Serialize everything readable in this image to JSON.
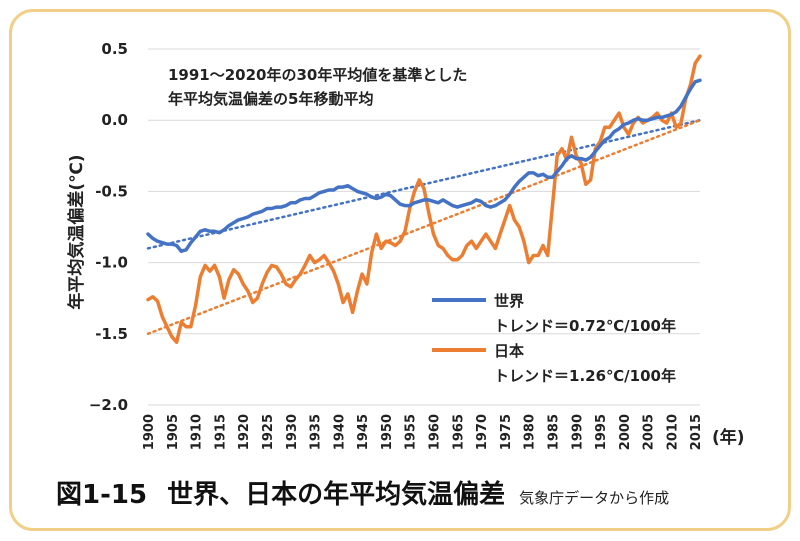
{
  "caption": {
    "number": "図1-15",
    "title": "世界、日本の年平均気温偏差",
    "source": "気象庁データから作成"
  },
  "chart_data": {
    "type": "line",
    "ylabel": "年平均気温偏差(℃)",
    "xlabel": "(年)",
    "annotation": [
      "1991～2020年の30年平均値を基準とした",
      "年平均気温偏差の5年移動平均"
    ],
    "ylim": [
      -2.0,
      0.5
    ],
    "xlim": [
      1900,
      2016
    ],
    "y_ticks": [
      0.5,
      0.0,
      -0.5,
      -1.0,
      -1.5,
      -2.0
    ],
    "y_tick_labels": [
      "0.5",
      "0.0",
      "-0.5",
      "-1.0",
      "-1.5",
      "−2.0"
    ],
    "x_ticks": [
      1900,
      1905,
      1910,
      1915,
      1920,
      1925,
      1930,
      1935,
      1940,
      1945,
      1950,
      1955,
      1960,
      1965,
      1970,
      1975,
      1980,
      1985,
      1990,
      1995,
      2000,
      2005,
      2010,
      2015
    ],
    "grid": "horizontal",
    "legend_position": "lower-right",
    "colors": {
      "world": "#4472c4",
      "japan": "#ed7d31",
      "grid": "#d9d9d9",
      "frame": "#f2cf86"
    },
    "series": [
      {
        "name": "世界",
        "legend_trend": "トレンド＝0.72℃/100年",
        "x": [
          1900,
          1901,
          1902,
          1903,
          1904,
          1905,
          1906,
          1907,
          1908,
          1909,
          1910,
          1911,
          1912,
          1913,
          1914,
          1915,
          1916,
          1917,
          1918,
          1919,
          1920,
          1921,
          1922,
          1923,
          1924,
          1925,
          1926,
          1927,
          1928,
          1929,
          1930,
          1931,
          1932,
          1933,
          1934,
          1935,
          1936,
          1937,
          1938,
          1939,
          1940,
          1941,
          1942,
          1943,
          1944,
          1945,
          1946,
          1947,
          1948,
          1949,
          1950,
          1951,
          1952,
          1953,
          1954,
          1955,
          1956,
          1957,
          1958,
          1959,
          1960,
          1961,
          1962,
          1963,
          1964,
          1965,
          1966,
          1967,
          1968,
          1969,
          1970,
          1971,
          1972,
          1973,
          1974,
          1975,
          1976,
          1977,
          1978,
          1979,
          1980,
          1981,
          1982,
          1983,
          1984,
          1985,
          1986,
          1987,
          1988,
          1989,
          1990,
          1991,
          1992,
          1993,
          1994,
          1995,
          1996,
          1997,
          1998,
          1999,
          2000,
          2001,
          2002,
          2003,
          2004,
          2005,
          2006,
          2007,
          2008,
          2009,
          2010,
          2011,
          2012,
          2013,
          2014,
          2015,
          2016
        ],
        "values": [
          -0.8,
          -0.83,
          -0.85,
          -0.86,
          -0.87,
          -0.87,
          -0.88,
          -0.92,
          -0.91,
          -0.86,
          -0.82,
          -0.78,
          -0.77,
          -0.78,
          -0.78,
          -0.79,
          -0.77,
          -0.74,
          -0.72,
          -0.7,
          -0.69,
          -0.68,
          -0.66,
          -0.65,
          -0.64,
          -0.62,
          -0.62,
          -0.61,
          -0.61,
          -0.6,
          -0.58,
          -0.58,
          -0.56,
          -0.55,
          -0.55,
          -0.53,
          -0.51,
          -0.5,
          -0.49,
          -0.49,
          -0.47,
          -0.47,
          -0.46,
          -0.48,
          -0.5,
          -0.51,
          -0.52,
          -0.54,
          -0.55,
          -0.54,
          -0.52,
          -0.53,
          -0.56,
          -0.59,
          -0.6,
          -0.6,
          -0.58,
          -0.57,
          -0.56,
          -0.56,
          -0.57,
          -0.58,
          -0.56,
          -0.58,
          -0.6,
          -0.61,
          -0.6,
          -0.59,
          -0.58,
          -0.56,
          -0.57,
          -0.6,
          -0.61,
          -0.6,
          -0.58,
          -0.56,
          -0.52,
          -0.47,
          -0.43,
          -0.4,
          -0.37,
          -0.37,
          -0.39,
          -0.38,
          -0.4,
          -0.4,
          -0.36,
          -0.32,
          -0.27,
          -0.25,
          -0.27,
          -0.27,
          -0.28,
          -0.26,
          -0.22,
          -0.18,
          -0.14,
          -0.12,
          -0.08,
          -0.06,
          -0.03,
          -0.02,
          0.0,
          0.01,
          0.0,
          0.0,
          0.01,
          0.02,
          0.02,
          0.03,
          0.04,
          0.06,
          0.1,
          0.16,
          0.22,
          0.27,
          0.28
        ]
      },
      {
        "name": "日本",
        "legend_trend": "トレンド＝1.26℃/100年",
        "x": [
          1900,
          1901,
          1902,
          1903,
          1904,
          1905,
          1906,
          1907,
          1908,
          1909,
          1910,
          1911,
          1912,
          1913,
          1914,
          1915,
          1916,
          1917,
          1918,
          1919,
          1920,
          1921,
          1922,
          1923,
          1924,
          1925,
          1926,
          1927,
          1928,
          1929,
          1930,
          1931,
          1932,
          1933,
          1934,
          1935,
          1936,
          1937,
          1938,
          1939,
          1940,
          1941,
          1942,
          1943,
          1944,
          1945,
          1946,
          1947,
          1948,
          1949,
          1950,
          1951,
          1952,
          1953,
          1954,
          1955,
          1956,
          1957,
          1958,
          1959,
          1960,
          1961,
          1962,
          1963,
          1964,
          1965,
          1966,
          1967,
          1968,
          1969,
          1970,
          1971,
          1972,
          1973,
          1974,
          1975,
          1976,
          1977,
          1978,
          1979,
          1980,
          1981,
          1982,
          1983,
          1984,
          1985,
          1986,
          1987,
          1988,
          1989,
          1990,
          1991,
          1992,
          1993,
          1994,
          1995,
          1996,
          1997,
          1998,
          1999,
          2000,
          2001,
          2002,
          2003,
          2004,
          2005,
          2006,
          2007,
          2008,
          2009,
          2010,
          2011,
          2012,
          2013,
          2014,
          2015,
          2016
        ],
        "values": [
          -1.26,
          -1.24,
          -1.27,
          -1.38,
          -1.45,
          -1.52,
          -1.56,
          -1.42,
          -1.45,
          -1.45,
          -1.3,
          -1.1,
          -1.02,
          -1.06,
          -1.02,
          -1.1,
          -1.25,
          -1.12,
          -1.05,
          -1.08,
          -1.15,
          -1.2,
          -1.28,
          -1.25,
          -1.15,
          -1.07,
          -1.02,
          -1.03,
          -1.08,
          -1.15,
          -1.17,
          -1.12,
          -1.08,
          -1.02,
          -0.95,
          -1.0,
          -0.98,
          -0.95,
          -1.0,
          -1.06,
          -1.15,
          -1.28,
          -1.22,
          -1.35,
          -1.2,
          -1.08,
          -1.15,
          -0.93,
          -0.8,
          -0.9,
          -0.85,
          -0.86,
          -0.88,
          -0.85,
          -0.78,
          -0.62,
          -0.5,
          -0.42,
          -0.48,
          -0.65,
          -0.8,
          -0.88,
          -0.9,
          -0.95,
          -0.98,
          -0.98,
          -0.95,
          -0.88,
          -0.85,
          -0.9,
          -0.85,
          -0.8,
          -0.85,
          -0.9,
          -0.8,
          -0.7,
          -0.6,
          -0.7,
          -0.75,
          -0.85,
          -1.0,
          -0.95,
          -0.95,
          -0.88,
          -0.95,
          -0.6,
          -0.25,
          -0.2,
          -0.28,
          -0.12,
          -0.25,
          -0.3,
          -0.45,
          -0.42,
          -0.2,
          -0.15,
          -0.05,
          -0.05,
          0.0,
          0.05,
          -0.05,
          -0.1,
          -0.02,
          0.02,
          -0.02,
          0.0,
          0.02,
          0.05,
          0.0,
          -0.02,
          0.05,
          -0.05,
          -0.02,
          0.15,
          0.25,
          0.4,
          0.45
        ]
      }
    ],
    "trendlines": [
      {
        "series": "世界",
        "x": [
          1900,
          2016
        ],
        "y": [
          -0.9,
          0.0
        ]
      },
      {
        "series": "日本",
        "x": [
          1900,
          2016
        ],
        "y": [
          -1.5,
          0.0
        ]
      }
    ]
  }
}
